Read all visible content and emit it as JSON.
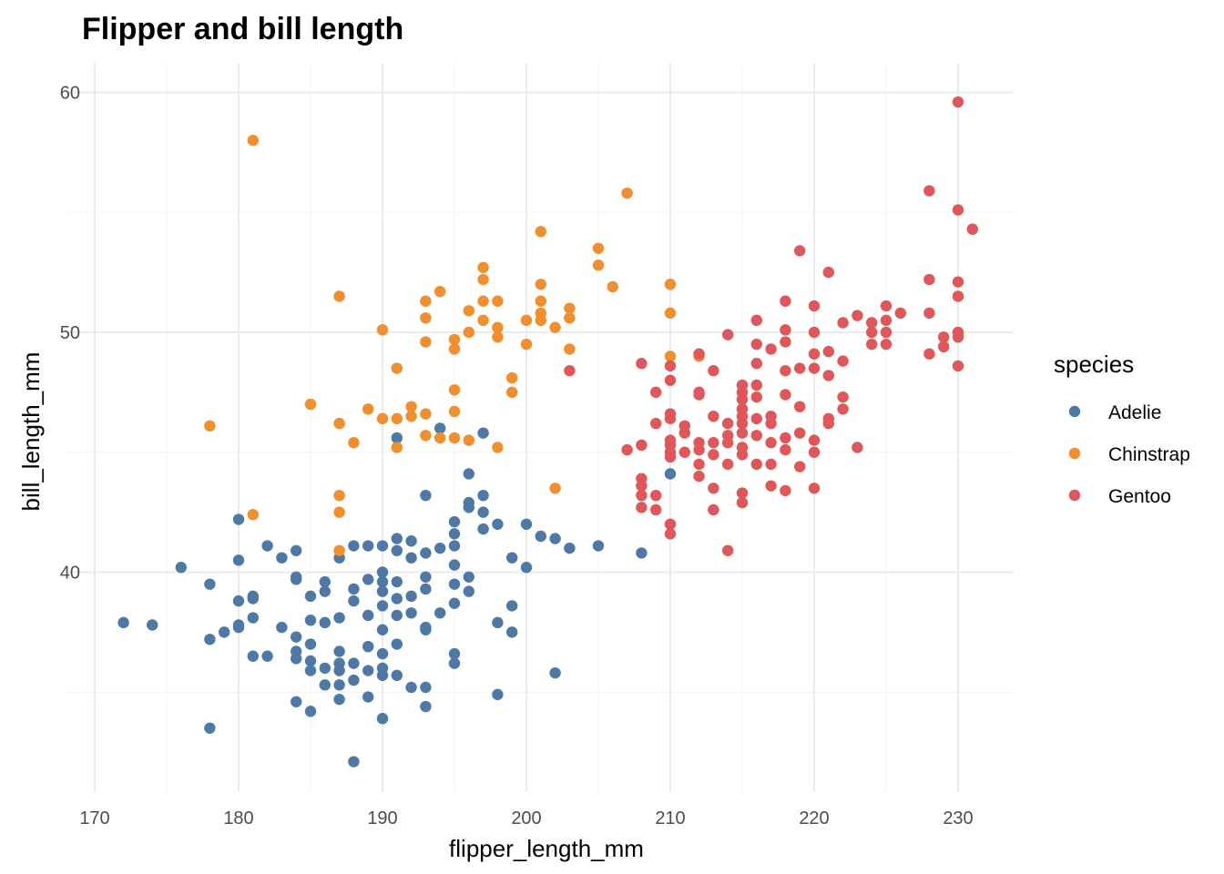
{
  "chart_data": {
    "type": "scatter",
    "title": "Flipper and bill length",
    "xlabel": "flipper_length_mm",
    "ylabel": "bill_length_mm",
    "xlim": [
      170,
      233
    ],
    "ylim": [
      31,
      61
    ],
    "xticks": [
      170,
      180,
      190,
      200,
      210,
      220,
      230
    ],
    "yticks": [
      40,
      50,
      60
    ],
    "grid": true,
    "legend": {
      "title": "species",
      "placement": "right"
    },
    "series": [
      {
        "name": "Adelie",
        "color": "#4e79a7",
        "points": [
          [
            172,
            37.9
          ],
          [
            174,
            37.8
          ],
          [
            176,
            40.2
          ],
          [
            178,
            39.5
          ],
          [
            178,
            37.2
          ],
          [
            178,
            33.5
          ],
          [
            179,
            37.5
          ],
          [
            180,
            42.2
          ],
          [
            180,
            40.5
          ],
          [
            180,
            38.8
          ],
          [
            180,
            37.8
          ],
          [
            180,
            37.7
          ],
          [
            181,
            39.0
          ],
          [
            181,
            38.9
          ],
          [
            181,
            38.1
          ],
          [
            181,
            36.5
          ],
          [
            182,
            41.1
          ],
          [
            182,
            36.5
          ],
          [
            183,
            37.7
          ],
          [
            183,
            40.6
          ],
          [
            184,
            40.9
          ],
          [
            184,
            39.8
          ],
          [
            184,
            39.7
          ],
          [
            184,
            37.3
          ],
          [
            184,
            36.7
          ],
          [
            184,
            36.4
          ],
          [
            184,
            34.6
          ],
          [
            185,
            39.0
          ],
          [
            185,
            38.0
          ],
          [
            185,
            37.0
          ],
          [
            185,
            36.3
          ],
          [
            185,
            35.9
          ],
          [
            185,
            34.2
          ],
          [
            186,
            39.6
          ],
          [
            186,
            39.2
          ],
          [
            186,
            37.9
          ],
          [
            186,
            36.0
          ],
          [
            186,
            35.3
          ],
          [
            187,
            40.6
          ],
          [
            187,
            38.1
          ],
          [
            187,
            36.7
          ],
          [
            187,
            36.2
          ],
          [
            187,
            35.9
          ],
          [
            187,
            35.3
          ],
          [
            187,
            34.7
          ],
          [
            188,
            41.1
          ],
          [
            188,
            39.3
          ],
          [
            188,
            38.8
          ],
          [
            188,
            36.2
          ],
          [
            188,
            35.5
          ],
          [
            188,
            32.1
          ],
          [
            189,
            41.1
          ],
          [
            189,
            39.7
          ],
          [
            189,
            38.2
          ],
          [
            189,
            36.9
          ],
          [
            189,
            35.9
          ],
          [
            189,
            34.8
          ],
          [
            190,
            41.1
          ],
          [
            190,
            40.0
          ],
          [
            190,
            39.6
          ],
          [
            190,
            39.2
          ],
          [
            190,
            38.6
          ],
          [
            190,
            37.6
          ],
          [
            190,
            36.6
          ],
          [
            190,
            36.0
          ],
          [
            190,
            35.7
          ],
          [
            190,
            33.9
          ],
          [
            191,
            45.6
          ],
          [
            191,
            41.4
          ],
          [
            191,
            40.9
          ],
          [
            191,
            39.6
          ],
          [
            191,
            38.9
          ],
          [
            191,
            38.2
          ],
          [
            191,
            37.0
          ],
          [
            191,
            35.7
          ],
          [
            192,
            41.3
          ],
          [
            192,
            40.6
          ],
          [
            192,
            39.0
          ],
          [
            192,
            38.3
          ],
          [
            192,
            35.2
          ],
          [
            193,
            43.2
          ],
          [
            193,
            40.8
          ],
          [
            193,
            39.8
          ],
          [
            193,
            39.3
          ],
          [
            193,
            37.7
          ],
          [
            193,
            37.6
          ],
          [
            193,
            35.2
          ],
          [
            193,
            34.4
          ],
          [
            194,
            41.0
          ],
          [
            194,
            38.3
          ],
          [
            194,
            46.0
          ],
          [
            195,
            42.1
          ],
          [
            195,
            41.6
          ],
          [
            195,
            41.1
          ],
          [
            195,
            40.3
          ],
          [
            195,
            39.5
          ],
          [
            195,
            38.7
          ],
          [
            195,
            36.6
          ],
          [
            195,
            36.2
          ],
          [
            196,
            44.1
          ],
          [
            196,
            42.9
          ],
          [
            196,
            42.7
          ],
          [
            196,
            39.8
          ],
          [
            196,
            39.2
          ],
          [
            197,
            45.8
          ],
          [
            197,
            43.2
          ],
          [
            197,
            42.5
          ],
          [
            197,
            41.8
          ],
          [
            198,
            42.0
          ],
          [
            198,
            37.9
          ],
          [
            198,
            34.9
          ],
          [
            199,
            40.6
          ],
          [
            199,
            38.6
          ],
          [
            199,
            37.5
          ],
          [
            200,
            42.0
          ],
          [
            200,
            40.2
          ],
          [
            201,
            41.5
          ],
          [
            202,
            41.4
          ],
          [
            202,
            35.8
          ],
          [
            203,
            41.0
          ],
          [
            205,
            41.1
          ],
          [
            208,
            40.8
          ],
          [
            210,
            44.1
          ]
        ]
      },
      {
        "name": "Chinstrap",
        "color": "#f28e2b",
        "points": [
          [
            178,
            46.1
          ],
          [
            181,
            58.0
          ],
          [
            181,
            42.4
          ],
          [
            185,
            47.0
          ],
          [
            187,
            51.5
          ],
          [
            187,
            46.2
          ],
          [
            187,
            43.2
          ],
          [
            187,
            42.5
          ],
          [
            187,
            40.9
          ],
          [
            188,
            45.4
          ],
          [
            189,
            46.8
          ],
          [
            190,
            50.1
          ],
          [
            190,
            46.4
          ],
          [
            191,
            48.5
          ],
          [
            191,
            46.4
          ],
          [
            191,
            45.2
          ],
          [
            192,
            46.9
          ],
          [
            192,
            46.5
          ],
          [
            193,
            51.3
          ],
          [
            193,
            50.6
          ],
          [
            193,
            49.6
          ],
          [
            193,
            46.6
          ],
          [
            193,
            45.7
          ],
          [
            194,
            51.7
          ],
          [
            194,
            45.6
          ],
          [
            195,
            49.7
          ],
          [
            195,
            49.3
          ],
          [
            195,
            47.6
          ],
          [
            195,
            46.7
          ],
          [
            195,
            45.6
          ],
          [
            196,
            50.9
          ],
          [
            196,
            50.0
          ],
          [
            196,
            45.5
          ],
          [
            197,
            52.7
          ],
          [
            197,
            52.2
          ],
          [
            197,
            51.3
          ],
          [
            197,
            50.5
          ],
          [
            198,
            51.3
          ],
          [
            198,
            50.2
          ],
          [
            198,
            49.8
          ],
          [
            198,
            45.2
          ],
          [
            199,
            48.1
          ],
          [
            199,
            47.5
          ],
          [
            200,
            50.5
          ],
          [
            200,
            49.5
          ],
          [
            201,
            54.2
          ],
          [
            201,
            52.0
          ],
          [
            201,
            51.3
          ],
          [
            201,
            50.8
          ],
          [
            201,
            50.5
          ],
          [
            202,
            50.2
          ],
          [
            202,
            43.5
          ],
          [
            203,
            51.0
          ],
          [
            203,
            50.6
          ],
          [
            203,
            49.3
          ],
          [
            205,
            53.5
          ],
          [
            205,
            52.8
          ],
          [
            206,
            51.9
          ],
          [
            207,
            55.8
          ],
          [
            210,
            52.0
          ],
          [
            210,
            50.8
          ],
          [
            210,
            49.0
          ],
          [
            212,
            49.0
          ]
        ]
      },
      {
        "name": "Gentoo",
        "color": "#e15759",
        "points": [
          [
            203,
            48.4
          ],
          [
            207,
            45.1
          ],
          [
            208,
            48.7
          ],
          [
            208,
            45.3
          ],
          [
            208,
            43.9
          ],
          [
            208,
            43.6
          ],
          [
            208,
            43.2
          ],
          [
            208,
            42.7
          ],
          [
            209,
            47.5
          ],
          [
            209,
            46.2
          ],
          [
            209,
            43.2
          ],
          [
            209,
            42.6
          ],
          [
            210,
            48.6
          ],
          [
            210,
            48.0
          ],
          [
            210,
            46.6
          ],
          [
            210,
            46.4
          ],
          [
            210,
            45.5
          ],
          [
            210,
            45.3
          ],
          [
            210,
            45.0
          ],
          [
            210,
            44.8
          ],
          [
            210,
            42.0
          ],
          [
            210,
            41.6
          ],
          [
            211,
            46.1
          ],
          [
            211,
            45.8
          ],
          [
            211,
            45.0
          ],
          [
            212,
            49.1
          ],
          [
            212,
            47.5
          ],
          [
            212,
            47.4
          ],
          [
            212,
            45.4
          ],
          [
            212,
            45.1
          ],
          [
            212,
            44.5
          ],
          [
            212,
            44.0
          ],
          [
            213,
            48.4
          ],
          [
            213,
            46.5
          ],
          [
            213,
            45.4
          ],
          [
            213,
            44.9
          ],
          [
            213,
            43.5
          ],
          [
            213,
            42.6
          ],
          [
            214,
            49.9
          ],
          [
            214,
            46.2
          ],
          [
            214,
            45.7
          ],
          [
            214,
            45.4
          ],
          [
            214,
            44.5
          ],
          [
            214,
            40.9
          ],
          [
            215,
            47.8
          ],
          [
            215,
            47.5
          ],
          [
            215,
            47.2
          ],
          [
            215,
            46.8
          ],
          [
            215,
            46.5
          ],
          [
            215,
            46.2
          ],
          [
            215,
            45.8
          ],
          [
            215,
            45.2
          ],
          [
            215,
            44.9
          ],
          [
            215,
            43.3
          ],
          [
            215,
            42.9
          ],
          [
            216,
            50.5
          ],
          [
            216,
            49.5
          ],
          [
            216,
            48.7
          ],
          [
            216,
            47.8
          ],
          [
            216,
            47.3
          ],
          [
            216,
            46.4
          ],
          [
            216,
            45.7
          ],
          [
            216,
            44.5
          ],
          [
            217,
            49.3
          ],
          [
            217,
            46.5
          ],
          [
            217,
            46.2
          ],
          [
            217,
            45.4
          ],
          [
            217,
            44.5
          ],
          [
            217,
            43.6
          ],
          [
            218,
            51.3
          ],
          [
            218,
            50.1
          ],
          [
            218,
            49.6
          ],
          [
            218,
            48.4
          ],
          [
            218,
            47.4
          ],
          [
            218,
            45.6
          ],
          [
            218,
            45.1
          ],
          [
            218,
            43.4
          ],
          [
            219,
            53.4
          ],
          [
            219,
            48.5
          ],
          [
            219,
            46.9
          ],
          [
            219,
            45.8
          ],
          [
            219,
            44.4
          ],
          [
            220,
            51.1
          ],
          [
            220,
            50.0
          ],
          [
            220,
            49.1
          ],
          [
            220,
            48.5
          ],
          [
            220,
            45.5
          ],
          [
            220,
            45.0
          ],
          [
            220,
            43.5
          ],
          [
            221,
            52.5
          ],
          [
            221,
            49.2
          ],
          [
            221,
            48.2
          ],
          [
            221,
            46.4
          ],
          [
            221,
            46.2
          ],
          [
            222,
            50.4
          ],
          [
            222,
            48.8
          ],
          [
            222,
            47.3
          ],
          [
            222,
            46.8
          ],
          [
            223,
            50.7
          ],
          [
            223,
            45.2
          ],
          [
            224,
            50.4
          ],
          [
            224,
            50.0
          ],
          [
            224,
            49.5
          ],
          [
            225,
            51.1
          ],
          [
            225,
            50.5
          ],
          [
            225,
            50.0
          ],
          [
            225,
            49.5
          ],
          [
            226,
            50.8
          ],
          [
            228,
            55.9
          ],
          [
            228,
            52.2
          ],
          [
            228,
            50.8
          ],
          [
            228,
            49.1
          ],
          [
            229,
            49.8
          ],
          [
            229,
            49.4
          ],
          [
            230,
            59.6
          ],
          [
            230,
            55.1
          ],
          [
            230,
            52.1
          ],
          [
            230,
            51.5
          ],
          [
            230,
            50.0
          ],
          [
            230,
            49.8
          ],
          [
            230,
            48.6
          ],
          [
            231,
            54.3
          ]
        ]
      }
    ]
  }
}
